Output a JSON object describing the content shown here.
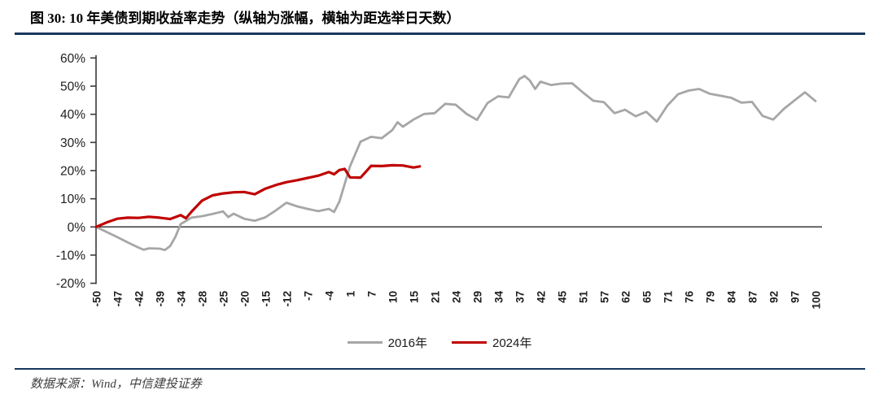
{
  "header": {
    "title": "图 30: 10 年美债到期收益率走势（纵轴为涨幅，横轴为距选举日天数）"
  },
  "footer": {
    "source": "数据来源：Wind，中信建投证券"
  },
  "colors": {
    "accent_rule": "#17375E",
    "series_2016": "#A6A6A6",
    "series_2024": "#C00000",
    "axis": "#3a3a3a",
    "zero_line": "#3a3a3a",
    "tick_text": "#1f1f1f"
  },
  "chart_data": {
    "type": "line",
    "title": "图 30: 10 年美债到期收益率走势（纵轴为涨幅，横轴为距选举日天数）",
    "x_axis_description": "距选举日天数",
    "y_axis_description": "涨幅",
    "y_unit": "%",
    "ylim": [
      -20,
      60
    ],
    "grid": false,
    "legend_position": "bottom-center",
    "y_tick_values": [
      60,
      50,
      40,
      30,
      20,
      10,
      0,
      -10,
      -20
    ],
    "y_tick_labels": [
      "60%",
      "50%",
      "40%",
      "30%",
      "20%",
      "10%",
      "0%",
      "-10%",
      "-20%"
    ],
    "x_tick_labels": [
      "-50",
      "-47",
      "-42",
      "-39",
      "-34",
      "-28",
      "-25",
      "-20",
      "-15",
      "-12",
      "-7",
      "-4",
      "1",
      "7",
      "10",
      "15",
      "21",
      "24",
      "29",
      "34",
      "37",
      "42",
      "45",
      "51",
      "57",
      "62",
      "65",
      "71",
      "76",
      "79",
      "84",
      "87",
      "92",
      "97",
      "100"
    ],
    "x_note": "series points use fractional index into x_tick_labels; values are percent change",
    "legend": [
      {
        "label": "2016年",
        "color": "#A6A6A6"
      },
      {
        "label": "2024年",
        "color": "#C00000"
      }
    ],
    "series": [
      {
        "name": "2016年",
        "color": "#A6A6A6",
        "width": 2.8,
        "points": [
          [
            0,
            0
          ],
          [
            0.5,
            -1.8
          ],
          [
            1,
            -3.6
          ],
          [
            1.5,
            -5.5
          ],
          [
            2,
            -7.3
          ],
          [
            2.25,
            -8.1
          ],
          [
            2.5,
            -7.6
          ],
          [
            3,
            -7.7
          ],
          [
            3.25,
            -8.2
          ],
          [
            3.5,
            -6.8
          ],
          [
            3.75,
            -3.5
          ],
          [
            4,
            1
          ],
          [
            4.5,
            3.3
          ],
          [
            5,
            3.8
          ],
          [
            5.5,
            4.6
          ],
          [
            6,
            5.5
          ],
          [
            6.25,
            3.5
          ],
          [
            6.5,
            4.7
          ],
          [
            7,
            2.9
          ],
          [
            7.5,
            2.2
          ],
          [
            8,
            3.4
          ],
          [
            8.5,
            5.9
          ],
          [
            9,
            8.6
          ],
          [
            9.5,
            7.3
          ],
          [
            10,
            6.4
          ],
          [
            10.5,
            5.6
          ],
          [
            11,
            6.4
          ],
          [
            11.25,
            5.3
          ],
          [
            11.5,
            9
          ],
          [
            12,
            21.5
          ],
          [
            12.5,
            30.3
          ],
          [
            13,
            32
          ],
          [
            13.5,
            31.5
          ],
          [
            14,
            34.4
          ],
          [
            14.25,
            37.2
          ],
          [
            14.5,
            35.6
          ],
          [
            15,
            38.1
          ],
          [
            15.5,
            40.1
          ],
          [
            16,
            40.4
          ],
          [
            16.5,
            43.7
          ],
          [
            17,
            43.4
          ],
          [
            17.5,
            40.2
          ],
          [
            18,
            38
          ],
          [
            18.5,
            44
          ],
          [
            19,
            46.4
          ],
          [
            19.5,
            46
          ],
          [
            20,
            52.5
          ],
          [
            20.25,
            53.6
          ],
          [
            20.5,
            52
          ],
          [
            20.75,
            49
          ],
          [
            21,
            51.6
          ],
          [
            21.5,
            50.4
          ],
          [
            22,
            50.9
          ],
          [
            22.5,
            51
          ],
          [
            23,
            47.8
          ],
          [
            23.5,
            44.8
          ],
          [
            24,
            44.3
          ],
          [
            24.5,
            40.4
          ],
          [
            25,
            41.6
          ],
          [
            25.5,
            39.3
          ],
          [
            26,
            40.9
          ],
          [
            26.5,
            37.4
          ],
          [
            27,
            43.1
          ],
          [
            27.5,
            47.1
          ],
          [
            28,
            48.4
          ],
          [
            28.5,
            49
          ],
          [
            29,
            47.3
          ],
          [
            29.5,
            46.6
          ],
          [
            30,
            45.9
          ],
          [
            30.5,
            44.1
          ],
          [
            31,
            44.4
          ],
          [
            31.5,
            39.4
          ],
          [
            32,
            38.1
          ],
          [
            32.5,
            41.9
          ],
          [
            33,
            44.9
          ],
          [
            33.5,
            47.8
          ],
          [
            34,
            44.7
          ]
        ]
      },
      {
        "name": "2024年",
        "color": "#C00000",
        "width": 3.2,
        "points": [
          [
            0,
            0
          ],
          [
            0.5,
            1.6
          ],
          [
            1,
            2.9
          ],
          [
            1.5,
            3.3
          ],
          [
            2,
            3.2
          ],
          [
            2.5,
            3.6
          ],
          [
            3,
            3.3
          ],
          [
            3.5,
            2.8
          ],
          [
            4,
            4.2
          ],
          [
            4.25,
            3.1
          ],
          [
            4.5,
            5.3
          ],
          [
            5,
            9.3
          ],
          [
            5.5,
            11.2
          ],
          [
            6,
            11.9
          ],
          [
            6.5,
            12.3
          ],
          [
            7,
            12.4
          ],
          [
            7.5,
            11.6
          ],
          [
            8,
            13.6
          ],
          [
            8.5,
            14.9
          ],
          [
            9,
            15.9
          ],
          [
            9.5,
            16.6
          ],
          [
            10,
            17.4
          ],
          [
            10.5,
            18.2
          ],
          [
            11,
            19.5
          ],
          [
            11.25,
            18.7
          ],
          [
            11.5,
            20.2
          ],
          [
            11.75,
            20.6
          ],
          [
            12,
            17.6
          ],
          [
            12.5,
            17.5
          ],
          [
            12.75,
            19.6
          ],
          [
            13,
            21.7
          ],
          [
            13.5,
            21.6
          ],
          [
            14,
            21.9
          ],
          [
            14.5,
            21.8
          ],
          [
            15,
            21.1
          ],
          [
            15.3,
            21.5
          ]
        ]
      }
    ]
  }
}
